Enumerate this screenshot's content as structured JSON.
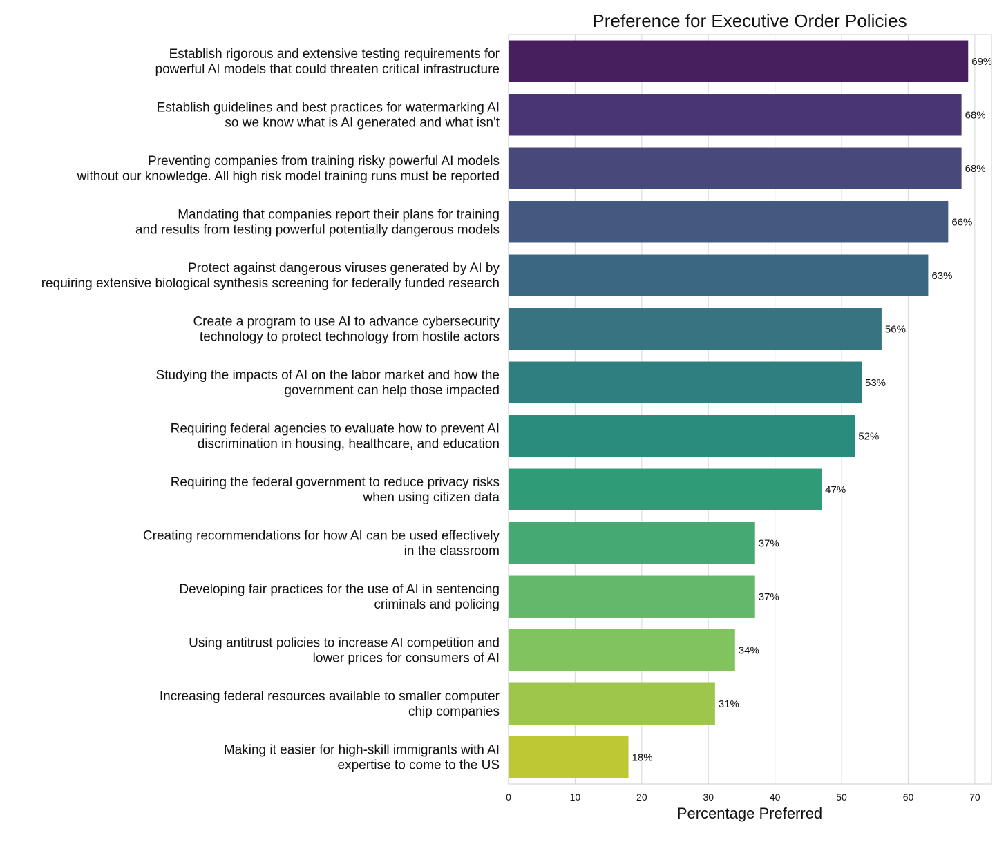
{
  "chart_data": {
    "type": "bar",
    "orientation": "horizontal",
    "title": "Preference for Executive Order Policies",
    "xlabel": "Percentage Preferred",
    "ylabel": "",
    "xlim": [
      0,
      72.5
    ],
    "xticks": [
      0,
      10,
      20,
      30,
      40,
      50,
      60,
      70
    ],
    "grid": true,
    "value_suffix": "%",
    "categories": [
      [
        "Establish rigorous and extensive testing requirements for",
        "powerful AI models that could threaten critical infrastructure"
      ],
      [
        "Establish guidelines and best practices for watermarking AI",
        "so we know what is AI generated and what isn't"
      ],
      [
        "Preventing companies from training risky powerful AI models",
        "without our knowledge. All high risk model training runs must be reported"
      ],
      [
        "Mandating that companies report their plans for training",
        "and results from testing powerful potentially dangerous models"
      ],
      [
        "Protect against dangerous viruses generated by AI by",
        "requiring extensive biological synthesis screening for federally funded research"
      ],
      [
        "Create a program to use AI to advance cybersecurity",
        "technology to protect technology from hostile actors"
      ],
      [
        "Studying the impacts of AI on the labor market and how the",
        "government can help those impacted"
      ],
      [
        "Requiring federal agencies to evaluate how to prevent AI",
        "discrimination in housing, healthcare, and education"
      ],
      [
        "Requiring the federal government to reduce privacy risks",
        "when using citizen data"
      ],
      [
        "Creating recommendations for how AI can be used effectively",
        "in the classroom"
      ],
      [
        "Developing fair practices for the use of AI in sentencing",
        "criminals and policing"
      ],
      [
        "Using antitrust policies to increase AI competition and",
        "lower prices for consumers of AI"
      ],
      [
        "Increasing federal resources available to smaller computer",
        "chip companies"
      ],
      [
        "Making it easier for high-skill immigrants with AI",
        "expertise to come to the US"
      ]
    ],
    "values": [
      69,
      68,
      68,
      66,
      63,
      56,
      53,
      52,
      47,
      37,
      37,
      34,
      31,
      18
    ],
    "colors": [
      "#481f5e",
      "#4a3574",
      "#48497b",
      "#43597f",
      "#3c6782",
      "#367482",
      "#2f7f80",
      "#2a8c7d",
      "#2f9b77",
      "#45a973",
      "#63b86b",
      "#80c35f",
      "#9ec64b",
      "#bec834"
    ]
  }
}
